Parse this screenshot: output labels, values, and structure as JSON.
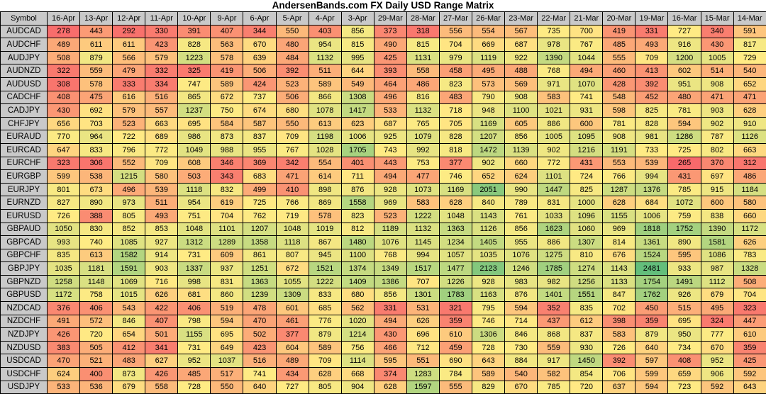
{
  "title": "AndersenBands.com FX Daily USD Range Matrix",
  "chart_data": {
    "type": "heatmap",
    "title": "AndersenBands.com FX Daily USD Range Matrix",
    "corner_label": "Symbol",
    "columns": [
      "16-Apr",
      "13-Apr",
      "12-Apr",
      "11-Apr",
      "10-Apr",
      "9-Apr",
      "6-Apr",
      "5-Apr",
      "4-Apr",
      "3-Apr",
      "29-Mar",
      "28-Mar",
      "27-Mar",
      "26-Mar",
      "23-Mar",
      "22-Mar",
      "21-Mar",
      "20-Mar",
      "19-Mar",
      "16-Mar",
      "15-Mar",
      "14-Mar"
    ],
    "rows": [
      {
        "symbol": "AUDCAD",
        "values": [
          278,
          443,
          292,
          330,
          391,
          407,
          344,
          550,
          403,
          856,
          373,
          318,
          556,
          554,
          567,
          735,
          700,
          419,
          331,
          727,
          340,
          591
        ]
      },
      {
        "symbol": "AUDCHF",
        "values": [
          489,
          611,
          611,
          423,
          828,
          563,
          670,
          480,
          954,
          815,
          490,
          815,
          704,
          669,
          687,
          978,
          767,
          485,
          493,
          916,
          430,
          817
        ]
      },
      {
        "symbol": "AUDJPY",
        "values": [
          508,
          879,
          566,
          579,
          1223,
          578,
          639,
          484,
          1132,
          995,
          425,
          1131,
          979,
          1119,
          922,
          1390,
          1044,
          555,
          709,
          1200,
          1005,
          729
        ]
      },
      {
        "symbol": "AUDNZD",
        "values": [
          322,
          559,
          479,
          332,
          325,
          419,
          506,
          392,
          511,
          644,
          393,
          558,
          458,
          495,
          488,
          768,
          494,
          460,
          413,
          602,
          514,
          540
        ]
      },
      {
        "symbol": "AUDUSD",
        "values": [
          308,
          578,
          333,
          334,
          747,
          589,
          424,
          523,
          589,
          549,
          464,
          486,
          823,
          573,
          569,
          971,
          1070,
          428,
          392,
          951,
          908,
          652
        ]
      },
      {
        "symbol": "CADCHF",
        "values": [
          408,
          475,
          616,
          516,
          865,
          672,
          737,
          506,
          866,
          1308,
          496,
          816,
          483,
          790,
          908,
          583,
          741,
          548,
          452,
          480,
          471,
          471
        ]
      },
      {
        "symbol": "CADJPY",
        "values": [
          430,
          692,
          579,
          557,
          1237,
          750,
          674,
          680,
          1078,
          1417,
          533,
          1132,
          718,
          948,
          1100,
          1021,
          931,
          598,
          825,
          781,
          903,
          628
        ]
      },
      {
        "symbol": "CHFJPY",
        "values": [
          656,
          703,
          523,
          663,
          695,
          584,
          587,
          550,
          613,
          623,
          687,
          765,
          705,
          1169,
          605,
          886,
          600,
          781,
          828,
          594,
          902,
          910
        ]
      },
      {
        "symbol": "EURAUD",
        "values": [
          770,
          964,
          722,
          689,
          986,
          873,
          837,
          709,
          1198,
          1006,
          925,
          1079,
          828,
          1207,
          856,
          1005,
          1095,
          908,
          981,
          1286,
          787,
          1126
        ]
      },
      {
        "symbol": "EURCAD",
        "values": [
          647,
          833,
          796,
          772,
          1049,
          988,
          955,
          767,
          1028,
          1705,
          743,
          992,
          818,
          1472,
          1139,
          902,
          1216,
          1191,
          733,
          725,
          802,
          663
        ]
      },
      {
        "symbol": "EURCHF",
        "values": [
          323,
          306,
          552,
          709,
          608,
          346,
          369,
          342,
          554,
          401,
          443,
          753,
          377,
          902,
          660,
          772,
          431,
          553,
          539,
          265,
          370,
          312
        ]
      },
      {
        "symbol": "EURGBP",
        "values": [
          599,
          538,
          1215,
          580,
          503,
          343,
          683,
          471,
          614,
          711,
          494,
          477,
          746,
          652,
          624,
          1101,
          724,
          766,
          994,
          431,
          697,
          486
        ]
      },
      {
        "symbol": "EURJPY",
        "values": [
          801,
          673,
          496,
          539,
          1118,
          832,
          499,
          410,
          898,
          876,
          928,
          1073,
          1169,
          2051,
          990,
          1447,
          825,
          1287,
          1376,
          785,
          915,
          1184
        ]
      },
      {
        "symbol": "EURNZD",
        "values": [
          827,
          890,
          973,
          511,
          954,
          619,
          725,
          766,
          869,
          1558,
          969,
          583,
          628,
          840,
          789,
          831,
          1000,
          628,
          684,
          1072,
          600,
          580
        ]
      },
      {
        "symbol": "EURUSD",
        "values": [
          726,
          388,
          805,
          493,
          751,
          704,
          762,
          719,
          578,
          823,
          523,
          1222,
          1048,
          1143,
          761,
          1033,
          1096,
          1155,
          1006,
          759,
          838,
          660
        ]
      },
      {
        "symbol": "GBPAUD",
        "values": [
          1050,
          830,
          852,
          853,
          1048,
          1101,
          1207,
          1048,
          1019,
          812,
          1189,
          1132,
          1363,
          1126,
          856,
          1623,
          1060,
          969,
          1818,
          1752,
          1390,
          1172
        ]
      },
      {
        "symbol": "GBPCAD",
        "values": [
          993,
          740,
          1085,
          927,
          1312,
          1289,
          1358,
          1118,
          867,
          1480,
          1076,
          1145,
          1234,
          1405,
          955,
          886,
          1307,
          814,
          1361,
          890,
          1581,
          626
        ]
      },
      {
        "symbol": "GBPCHF",
        "values": [
          835,
          613,
          1582,
          914,
          731,
          609,
          861,
          807,
          945,
          1100,
          768,
          994,
          1057,
          1035,
          1076,
          1275,
          810,
          676,
          1524,
          595,
          1086,
          783
        ]
      },
      {
        "symbol": "GBPJPY",
        "values": [
          1035,
          1181,
          1591,
          903,
          1337,
          937,
          1251,
          672,
          1521,
          1374,
          1349,
          1517,
          1477,
          2123,
          1246,
          1785,
          1274,
          1143,
          2481,
          933,
          987,
          1328
        ]
      },
      {
        "symbol": "GBPNZD",
        "values": [
          1258,
          1148,
          1069,
          716,
          998,
          831,
          1363,
          1055,
          1222,
          1409,
          1386,
          707,
          1226,
          928,
          983,
          982,
          1256,
          1133,
          1754,
          1491,
          1112,
          508
        ]
      },
      {
        "symbol": "GBPUSD",
        "values": [
          1172,
          758,
          1015,
          626,
          681,
          860,
          1239,
          1309,
          833,
          680,
          856,
          1301,
          1783,
          1163,
          876,
          1401,
          1551,
          847,
          1762,
          926,
          679,
          704
        ]
      },
      {
        "symbol": "NZDCAD",
        "values": [
          376,
          406,
          543,
          422,
          406,
          519,
          478,
          601,
          685,
          562,
          331,
          531,
          321,
          795,
          594,
          352,
          835,
          702,
          450,
          515,
          495,
          323
        ]
      },
      {
        "symbol": "NZDCHF",
        "values": [
          491,
          572,
          846,
          407,
          798,
          594,
          470,
          461,
          776,
          1020,
          494,
          626,
          359,
          746,
          714,
          437,
          612,
          398,
          359,
          695,
          324,
          447
        ]
      },
      {
        "symbol": "NZDJPY",
        "values": [
          426,
          720,
          654,
          501,
          1155,
          695,
          502,
          377,
          879,
          1214,
          430,
          696,
          610,
          1306,
          846,
          868,
          837,
          583,
          879,
          950,
          777,
          610
        ]
      },
      {
        "symbol": "NZDUSD",
        "values": [
          383,
          505,
          412,
          341,
          731,
          649,
          423,
          604,
          589,
          756,
          466,
          712,
          459,
          728,
          730,
          559,
          930,
          726,
          640,
          734,
          670,
          359
        ]
      },
      {
        "symbol": "USDCAD",
        "values": [
          470,
          521,
          483,
          627,
          952,
          1037,
          516,
          489,
          709,
          1114,
          595,
          551,
          690,
          643,
          884,
          917,
          1450,
          392,
          597,
          408,
          952,
          425
        ]
      },
      {
        "symbol": "USDCHF",
        "values": [
          624,
          400,
          873,
          426,
          485,
          517,
          741,
          434,
          628,
          668,
          374,
          1283,
          784,
          589,
          540,
          582,
          854,
          706,
          599,
          659,
          906,
          592
        ]
      },
      {
        "symbol": "USDJPY",
        "values": [
          533,
          536,
          679,
          558,
          728,
          550,
          640,
          727,
          805,
          904,
          628,
          1597,
          555,
          829,
          670,
          785,
          720,
          637,
          594,
          723,
          592,
          643
        ]
      }
    ],
    "color_scale": {
      "description": "3-color scale over all cells: min=red, median=yellow, max=green",
      "min_color": "#F8696B",
      "mid_color": "#FFEB84",
      "max_color": "#63BE7B",
      "header_bg": "#c9c9c9",
      "grid_color": "#000000"
    },
    "legend": "none",
    "grid": true
  }
}
